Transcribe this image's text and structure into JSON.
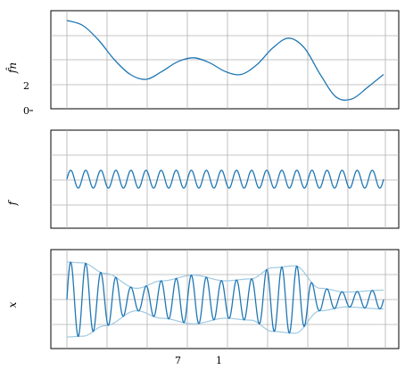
{
  "chart_data": [
    {
      "type": "line",
      "ylabel": "f̂n",
      "ytick_labels": [
        "2",
        "0"
      ],
      "grid": true,
      "color": "#1f77b4",
      "series": [
        {
          "x": [
            0,
            0.5,
            1,
            1.5,
            2,
            2.5,
            3,
            3.5,
            4,
            4.5,
            5,
            5.5,
            6,
            6.5,
            7,
            7.5,
            8,
            8.5,
            9,
            9.5,
            10
          ],
          "y": [
            0.9,
            0.85,
            0.7,
            0.5,
            0.35,
            0.3,
            0.38,
            0.48,
            0.52,
            0.47,
            0.38,
            0.35,
            0.45,
            0.62,
            0.72,
            0.62,
            0.35,
            0.12,
            0.1,
            0.22,
            0.35
          ]
        }
      ]
    },
    {
      "type": "line",
      "ylabel": "f",
      "grid": true,
      "color": "#1f77b4",
      "cycles": 21,
      "amplitude": 0.2,
      "x_range": [
        0,
        10
      ]
    },
    {
      "type": "line",
      "ylabel": "x",
      "xtick_labels": [
        "7",
        "1"
      ],
      "grid": true,
      "color": "#1f77b4",
      "envelope_color": "#9ec9e2",
      "cycles": 21,
      "x_range": [
        0,
        10
      ]
    }
  ]
}
